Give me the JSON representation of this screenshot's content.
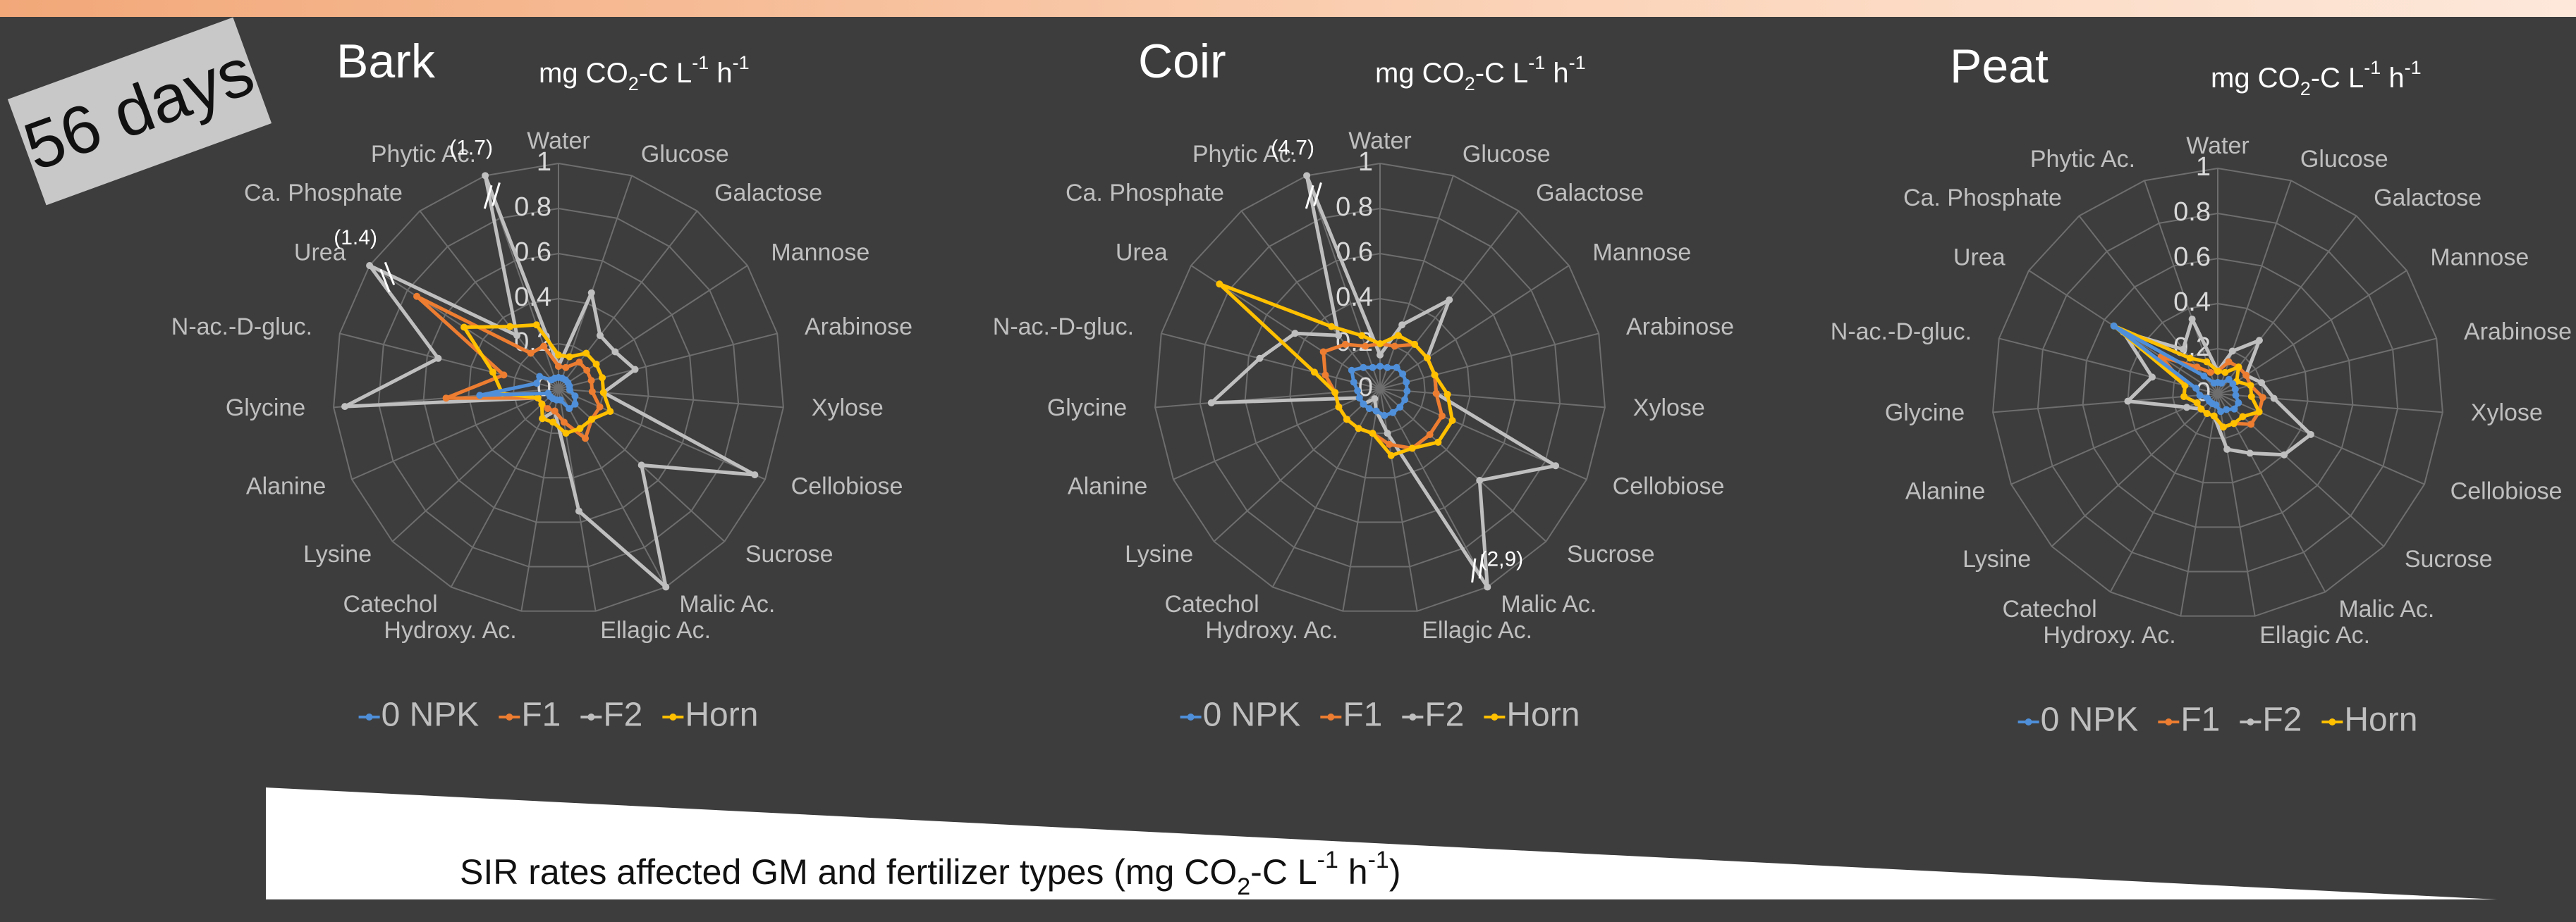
{
  "badge": "56 days",
  "caption": [
    "SIR rates affected GM and fertilizer types (mg CO",
    "2",
    "-C L",
    "-1",
    " h",
    "-1",
    ")"
  ],
  "unit": [
    "mg CO",
    "2",
    "-C L",
    "-1",
    " h",
    "-1"
  ],
  "chart_data": [
    {
      "type": "radar",
      "title": "Bark",
      "categories": [
        "Water",
        "Glucose",
        "Galactose",
        "Mannose",
        "Arabinose",
        "Xylose",
        "Cellobiose",
        "Sucrose",
        "Malic Ac.",
        "Ellagic Ac.",
        "Hydroxy. Ac.",
        "Catechol",
        "Lysine",
        "Alanine",
        "Glycine",
        "N-ac.-D-gluc.",
        "Urea",
        "Ca. Phosphate",
        "Phytic Ac."
      ],
      "rlim": [
        0,
        1
      ],
      "rticks": [
        0,
        0.2,
        0.4,
        0.6,
        0.8,
        1
      ],
      "series": [
        {
          "name": "0 NPK",
          "color": "#4f8fd9",
          "values": [
            0.05,
            0.05,
            0.05,
            0.05,
            0.05,
            0.05,
            0.08,
            0.1,
            0.1,
            0.05,
            0.05,
            0.05,
            0.05,
            0.05,
            0.35,
            0.1,
            0.1,
            0.05,
            0.05
          ]
        },
        {
          "name": "F1",
          "color": "#ed7d31",
          "values": [
            0.1,
            0.1,
            0.15,
            0.15,
            0.15,
            0.15,
            0.2,
            0.2,
            0.25,
            0.15,
            0.1,
            0.1,
            0.1,
            0.1,
            0.5,
            0.25,
            0.75,
            0.2,
            0.2
          ]
        },
        {
          "name": "F2",
          "color": "#bfbfbf",
          "values": [
            0.1,
            0.45,
            0.3,
            0.3,
            0.35,
            0.2,
            0.95,
            0.5,
            1.0,
            0.55,
            0.1,
            0.15,
            0.1,
            0.1,
            0.95,
            0.55,
            1.0,
            0.3,
            1.0
          ]
        },
        {
          "name": "Horn",
          "color": "#ffc000",
          "values": [
            0.15,
            0.15,
            0.2,
            0.2,
            0.2,
            0.2,
            0.25,
            0.2,
            0.2,
            0.2,
            0.15,
            0.15,
            0.1,
            0.1,
            0.25,
            0.3,
            0.5,
            0.35,
            0.3
          ]
        }
      ],
      "annotations": [
        {
          "text": "(1.7)",
          "category": "Phytic Ac."
        },
        {
          "text": "(1.4)",
          "category": "Urea"
        }
      ]
    },
    {
      "type": "radar",
      "title": "Coir",
      "categories": [
        "Water",
        "Glucose",
        "Galactose",
        "Mannose",
        "Arabinose",
        "Xylose",
        "Cellobiose",
        "Sucrose",
        "Malic Ac.",
        "Ellagic Ac.",
        "Hydroxy. Ac.",
        "Catechol",
        "Lysine",
        "Alanine",
        "Glycine",
        "N-ac.-D-gluc.",
        "Urea",
        "Ca. Phosphate",
        "Phytic Ac."
      ],
      "rlim": [
        0,
        1
      ],
      "rticks": [
        0,
        0.2,
        0.4,
        0.6,
        0.8,
        1
      ],
      "series": [
        {
          "name": "0 NPK",
          "color": "#4f8fd9",
          "values": [
            0.1,
            0.1,
            0.12,
            0.12,
            0.12,
            0.12,
            0.12,
            0.12,
            0.12,
            0.12,
            0.1,
            0.1,
            0.1,
            0.1,
            0.1,
            0.12,
            0.15,
            0.12,
            0.1
          ]
        },
        {
          "name": "F1",
          "color": "#ed7d31",
          "values": [
            0.2,
            0.2,
            0.25,
            0.25,
            0.25,
            0.25,
            0.3,
            0.3,
            0.3,
            0.25,
            0.2,
            0.2,
            0.2,
            0.2,
            0.2,
            0.25,
            0.3,
            0.25,
            0.2
          ]
        },
        {
          "name": "F2",
          "color": "#bfbfbf",
          "values": [
            0.15,
            0.3,
            0.5,
            0.25,
            0.25,
            0.25,
            0.85,
            0.6,
            1.0,
            0.2,
            0.1,
            0.05,
            0.1,
            0.1,
            0.75,
            0.55,
            0.45,
            0.3,
            1.0
          ]
        },
        {
          "name": "Horn",
          "color": "#ffc000",
          "values": [
            0.2,
            0.25,
            0.25,
            0.25,
            0.25,
            0.3,
            0.35,
            0.35,
            0.3,
            0.3,
            0.2,
            0.2,
            0.2,
            0.2,
            0.2,
            0.3,
            0.85,
            0.35,
            0.25
          ]
        }
      ],
      "annotations": [
        {
          "text": "(4.7)",
          "category": "Phytic Ac."
        },
        {
          "text": "(2,9)",
          "category": "Malic Ac."
        }
      ]
    },
    {
      "type": "radar",
      "title": "Peat",
      "categories": [
        "Water",
        "Glucose",
        "Galactose",
        "Mannose",
        "Arabinose",
        "Xylose",
        "Cellobiose",
        "Sucrose",
        "Malic Ac.",
        "Ellagic Ac.",
        "Hydroxy. Ac.",
        "Catechol",
        "Lysine",
        "Alanine",
        "Glycine",
        "N-ac.-D-gluc.",
        "Urea",
        "Ca. Phosphate",
        "Phytic Ac."
      ],
      "rlim": [
        0,
        1
      ],
      "rticks": [
        0,
        0.2,
        0.4,
        0.6,
        0.8,
        1
      ],
      "series": [
        {
          "name": "0 NPK",
          "color": "#4f8fd9",
          "values": [
            0.05,
            0.05,
            0.08,
            0.08,
            0.08,
            0.08,
            0.1,
            0.1,
            0.08,
            0.08,
            0.05,
            0.05,
            0.05,
            0.05,
            0.08,
            0.1,
            0.55,
            0.1,
            0.05
          ]
        },
        {
          "name": "F1",
          "color": "#ed7d31",
          "values": [
            0.1,
            0.15,
            0.15,
            0.15,
            0.15,
            0.2,
            0.2,
            0.2,
            0.15,
            0.15,
            0.1,
            0.1,
            0.1,
            0.1,
            0.15,
            0.15,
            0.3,
            0.15,
            0.1
          ]
        },
        {
          "name": "F2",
          "color": "#bfbfbf",
          "values": [
            0.1,
            0.2,
            0.3,
            0.15,
            0.2,
            0.25,
            0.45,
            0.4,
            0.3,
            0.25,
            0.1,
            0.1,
            0.1,
            0.15,
            0.4,
            0.3,
            0.5,
            0.25,
            0.35
          ]
        },
        {
          "name": "Horn",
          "color": "#ffc000",
          "values": [
            0.1,
            0.1,
            0.15,
            0.1,
            0.15,
            0.15,
            0.2,
            0.15,
            0.15,
            0.15,
            0.1,
            0.1,
            0.1,
            0.1,
            0.15,
            0.15,
            0.55,
            0.2,
            0.15
          ]
        }
      ],
      "annotations": []
    }
  ]
}
